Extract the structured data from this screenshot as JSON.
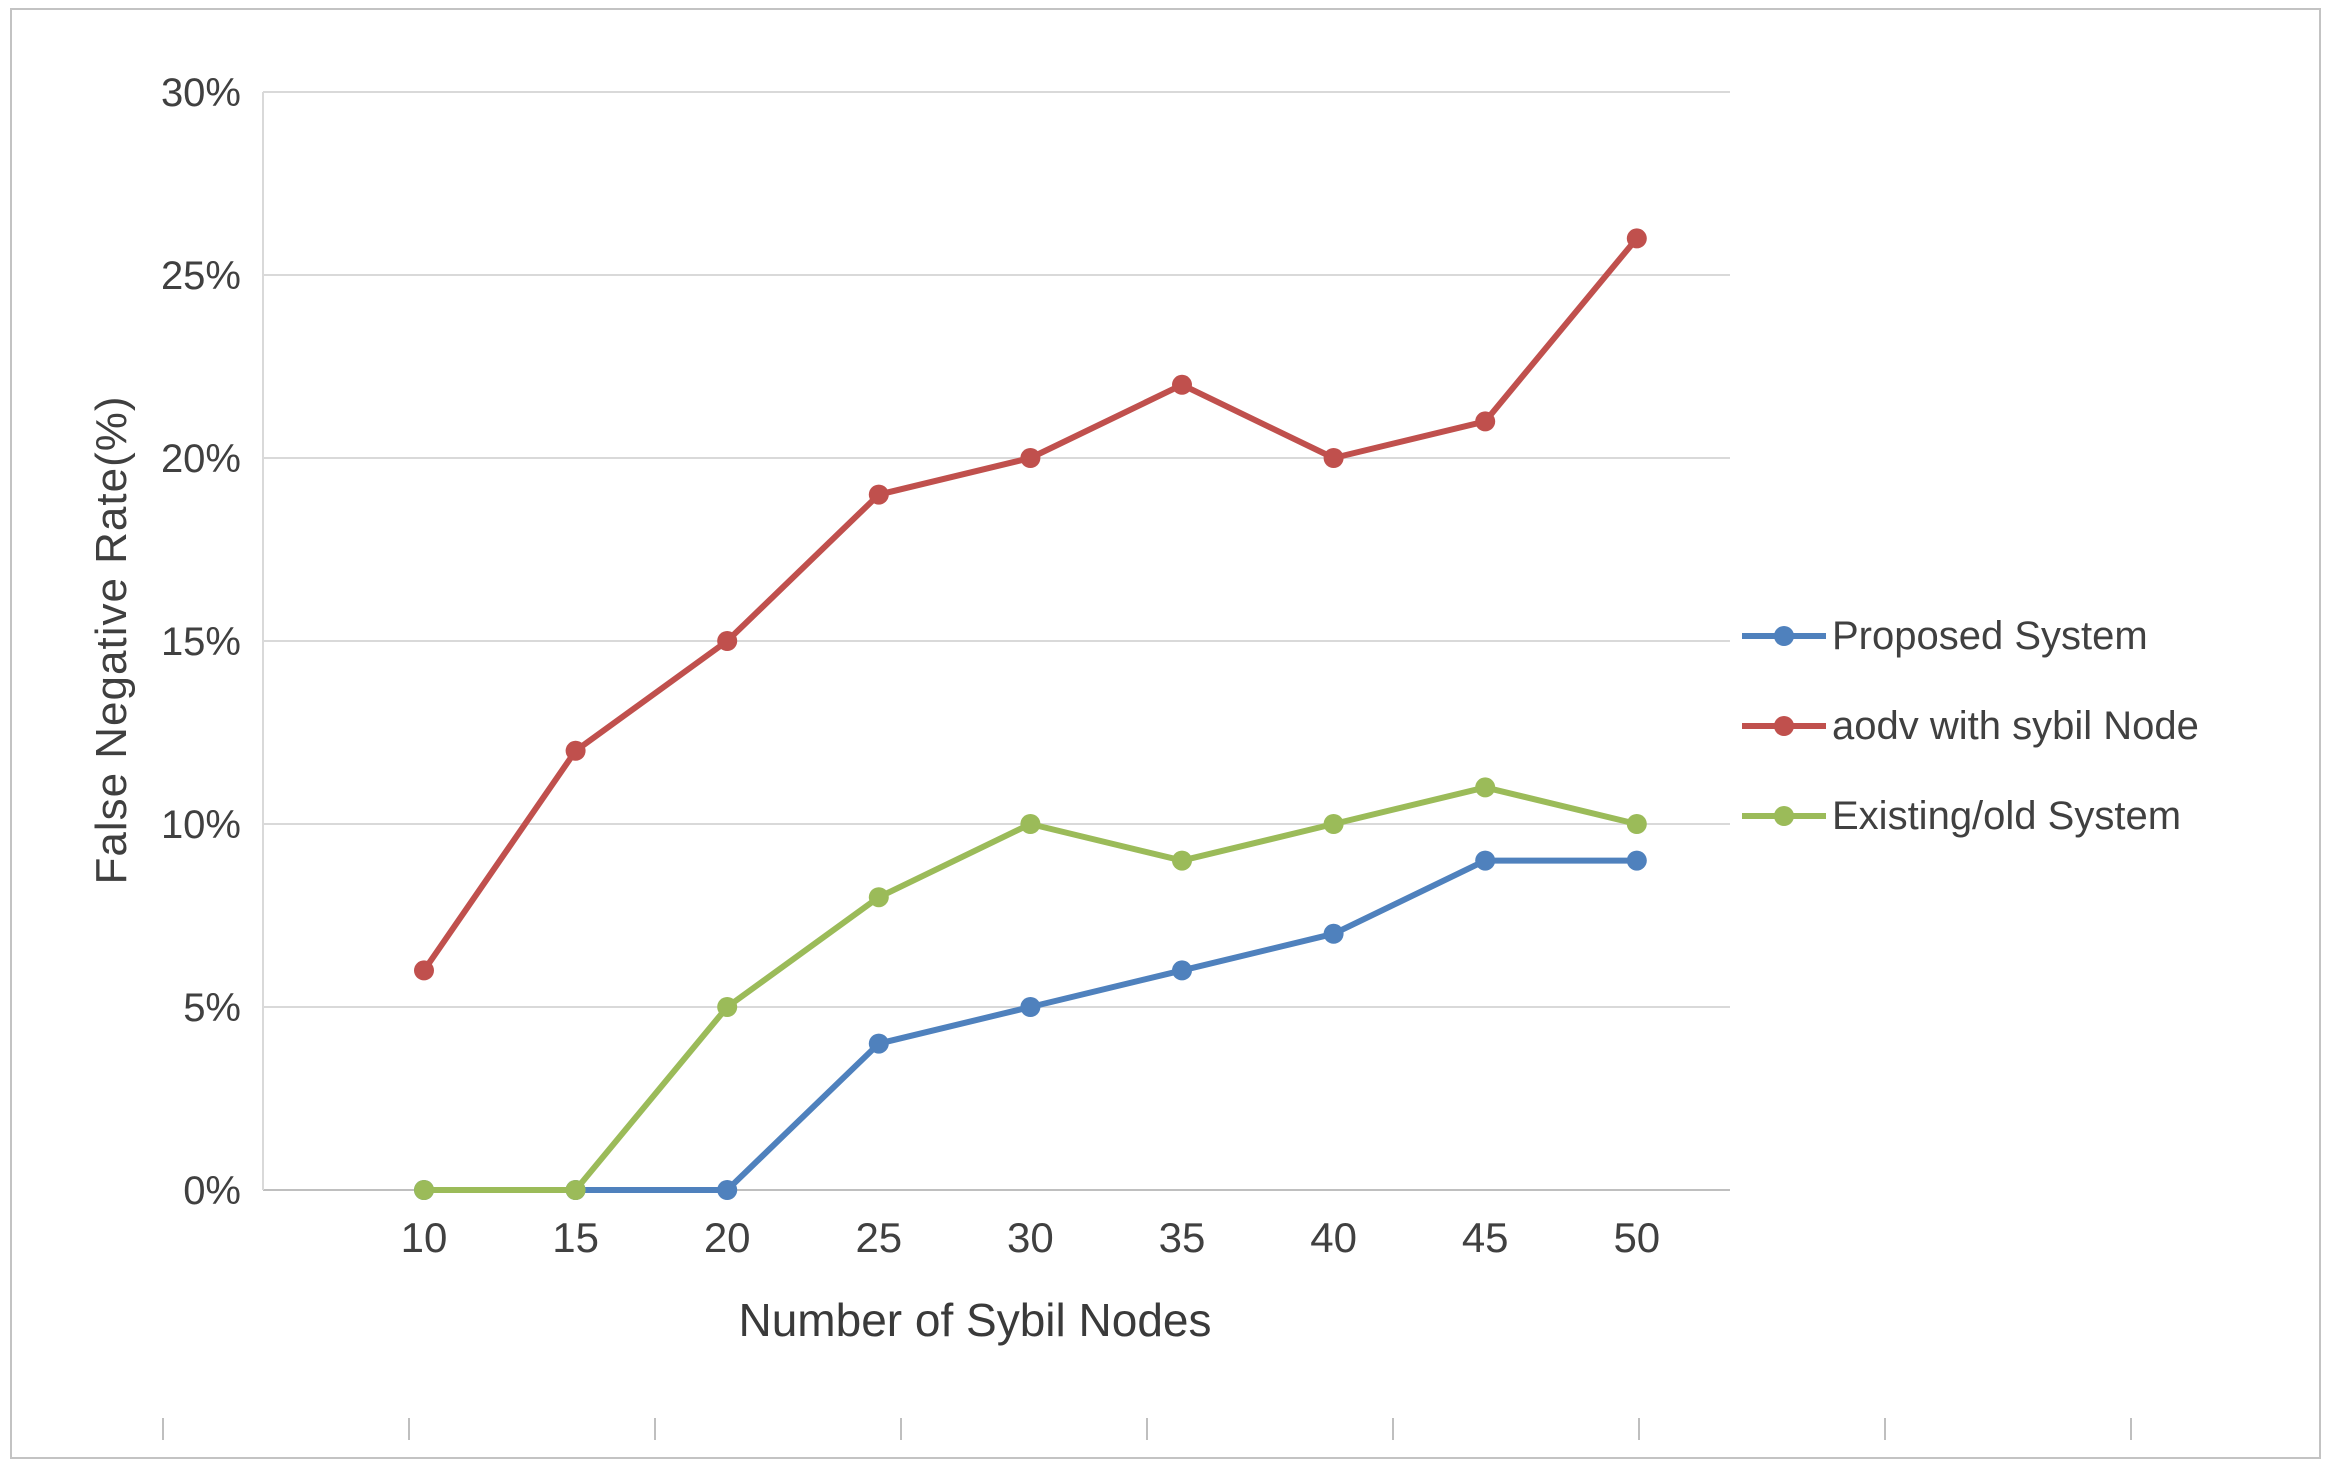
{
  "chart_data": {
    "type": "line",
    "title": "",
    "xlabel": "Number of Sybil Nodes",
    "ylabel": "False Negative Rate(%)",
    "x": [
      10,
      15,
      20,
      25,
      30,
      35,
      40,
      45,
      50
    ],
    "ylim": [
      0,
      30
    ],
    "yticks": [
      "0%",
      "5%",
      "10%",
      "15%",
      "20%",
      "25%",
      "30%"
    ],
    "grid": true,
    "legend_position": "right",
    "series": [
      {
        "name": "Proposed System",
        "color": "#4F81BD",
        "values": [
          0,
          0,
          0,
          4,
          5,
          6,
          7,
          9,
          9
        ]
      },
      {
        "name": "aodv with sybil Node",
        "color": "#C0504D",
        "values": [
          6,
          12,
          15,
          19,
          20,
          22,
          20,
          21,
          26
        ]
      },
      {
        "name": "Existing/old System",
        "color": "#9BBB59",
        "values": [
          0,
          0,
          5,
          8,
          10,
          9,
          10,
          11,
          10
        ]
      }
    ],
    "colors": {
      "gridline": "#d9d9d9",
      "axis_line": "#bfbfbf",
      "tick_text": "#404040"
    }
  }
}
